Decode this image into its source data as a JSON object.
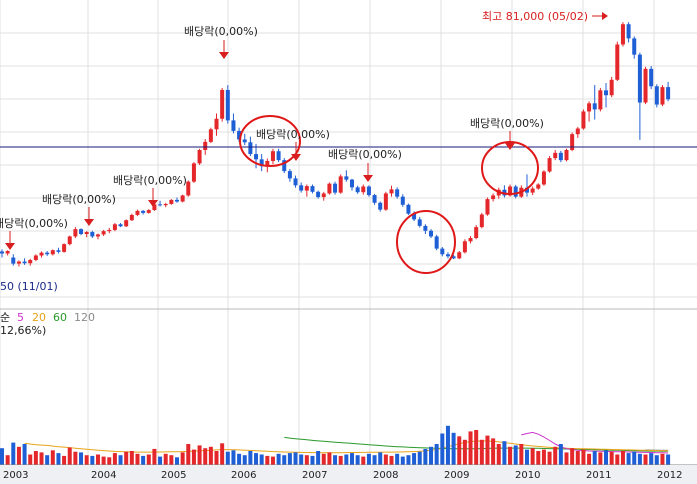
{
  "colors": {
    "up": "#e4272b",
    "down": "#1f5fd6",
    "arrow": "#d81e1e",
    "ref_line": "#1a1a7a",
    "circle": "#e01818",
    "grid": "#e0e0e0",
    "ma5": "#cc33cc",
    "ma20": "#e8a317",
    "ma60": "#2a9a2a",
    "ma120": "#9a9a9a"
  },
  "max_label": "최고 81,000 (05/02)",
  "min_label": "50 (11/01)",
  "dividend_annotations": [
    {
      "id": "2002",
      "text": "배당락(0,00%)"
    },
    {
      "id": "2003",
      "text": "배당락(0,00%)"
    },
    {
      "id": "2004",
      "text": "배당락(0,00%)"
    },
    {
      "id": "2005",
      "text": "배당락(0,00%)"
    },
    {
      "id": "2006",
      "text": "배당락(0,00%)"
    },
    {
      "id": "2007",
      "text": "배당락(0,00%)"
    },
    {
      "id": "2009",
      "text": "배당락(0,00%)"
    }
  ],
  "volume_legend": {
    "label": "순",
    "ma5": "5",
    "ma20": "20",
    "ma60": "60",
    "ma120": "120",
    "sub": "12,66%)"
  },
  "chart_data": {
    "type": "candlestick",
    "x_labels": [
      "2003",
      "2004",
      "2005",
      "2006",
      "2007",
      "2008",
      "2009",
      "2010",
      "2011",
      "2012"
    ],
    "price_range": [
      15000,
      84000
    ],
    "price_candles": [
      [
        24500,
        25000,
        23000,
        24000
      ],
      [
        24000,
        24800,
        23500,
        24600
      ],
      [
        23000,
        23800,
        21000,
        21500
      ],
      [
        21500,
        22300,
        20800,
        22000
      ],
      [
        22000,
        22800,
        21200,
        21600
      ],
      [
        21600,
        22700,
        21000,
        22400
      ],
      [
        22400,
        23800,
        22100,
        23500
      ],
      [
        23500,
        24500,
        23000,
        24200
      ],
      [
        24200,
        24600,
        23400,
        23800
      ],
      [
        23800,
        25000,
        23500,
        24800
      ],
      [
        24800,
        25400,
        24000,
        24400
      ],
      [
        24400,
        26500,
        24200,
        26300
      ],
      [
        26300,
        28400,
        26000,
        28200
      ],
      [
        28200,
        30500,
        27800,
        30000
      ],
      [
        30000,
        30200,
        28500,
        28800
      ],
      [
        28800,
        29500,
        28000,
        29300
      ],
      [
        29300,
        29600,
        27800,
        28200
      ],
      [
        28200,
        28900,
        27500,
        28700
      ],
      [
        28700,
        29800,
        28300,
        29500
      ],
      [
        29500,
        30300,
        29000,
        29800
      ],
      [
        29800,
        31500,
        29500,
        31200
      ],
      [
        31200,
        31500,
        30500,
        30700
      ],
      [
        30700,
        32400,
        30500,
        32200
      ],
      [
        32200,
        33800,
        32000,
        33500
      ],
      [
        33500,
        34800,
        33200,
        34500
      ],
      [
        34500,
        34700,
        33600,
        34000
      ],
      [
        34000,
        34900,
        33800,
        34700
      ],
      [
        34700,
        36300,
        34500,
        36100
      ],
      [
        36100,
        37000,
        35600,
        35900
      ],
      [
        35900,
        36500,
        35400,
        36200
      ],
      [
        36200,
        37400,
        36000,
        37200
      ],
      [
        37200,
        37800,
        36500,
        36800
      ],
      [
        36800,
        38500,
        36600,
        38300
      ],
      [
        38300,
        42000,
        38000,
        41700
      ],
      [
        41700,
        46500,
        41400,
        46200
      ],
      [
        46200,
        49800,
        45800,
        49500
      ],
      [
        49500,
        52200,
        48300,
        51500
      ],
      [
        51500,
        55000,
        51200,
        54600
      ],
      [
        54600,
        58500,
        53000,
        57200
      ],
      [
        57200,
        64800,
        56500,
        64300
      ],
      [
        64300,
        65500,
        56000,
        56800
      ],
      [
        56800,
        58500,
        53600,
        54200
      ],
      [
        54200,
        55000,
        51500,
        52100
      ],
      [
        52100,
        53500,
        50700,
        51400
      ],
      [
        51400,
        52800,
        48000,
        48500
      ],
      [
        48500,
        51000,
        45000,
        47200
      ],
      [
        47200,
        48500,
        44300,
        45500
      ],
      [
        45500,
        47400,
        44000,
        46800
      ],
      [
        46800,
        49800,
        46000,
        49200
      ],
      [
        49200,
        49800,
        46500,
        47000
      ],
      [
        47000,
        47500,
        43800,
        44300
      ],
      [
        44300,
        44800,
        41700,
        42500
      ],
      [
        42500,
        43200,
        40200,
        40800
      ],
      [
        40800,
        41500,
        39000,
        39500
      ],
      [
        39500,
        41000,
        38000,
        40600
      ],
      [
        40600,
        41000,
        38800,
        39200
      ],
      [
        39200,
        39500,
        37500,
        37900
      ],
      [
        37900,
        39200,
        37000,
        38800
      ],
      [
        38800,
        41500,
        38500,
        41200
      ],
      [
        41200,
        41700,
        38500,
        39000
      ],
      [
        39000,
        43500,
        38700,
        43000
      ],
      [
        43000,
        44500,
        41700,
        42200
      ],
      [
        42200,
        42400,
        39500,
        40300
      ],
      [
        40300,
        40700,
        38700,
        39100
      ],
      [
        39100,
        41000,
        38500,
        40500
      ],
      [
        40500,
        40800,
        38000,
        38400
      ],
      [
        38400,
        38700,
        36000,
        36500
      ],
      [
        36500,
        36800,
        34300,
        34800
      ],
      [
        34800,
        39200,
        34500,
        38800
      ],
      [
        38800,
        40700,
        38000,
        39800
      ],
      [
        39800,
        40300,
        37500,
        38000
      ],
      [
        38000,
        38600,
        35500,
        36000
      ],
      [
        36000,
        36300,
        33500,
        33800
      ],
      [
        33800,
        34400,
        32000,
        32400
      ],
      [
        32400,
        33000,
        30400,
        30800
      ],
      [
        30800,
        31200,
        28800,
        29600
      ],
      [
        29600,
        30000,
        27800,
        28200
      ],
      [
        28200,
        28600,
        24800,
        25200
      ],
      [
        25200,
        25600,
        23300,
        23800
      ],
      [
        23800,
        24300,
        22800,
        23300
      ],
      [
        23300,
        23700,
        22600,
        22800
      ],
      [
        22800,
        24600,
        22600,
        24300
      ],
      [
        24300,
        27500,
        24000,
        27000
      ],
      [
        27000,
        28300,
        26500,
        27800
      ],
      [
        27800,
        31000,
        27500,
        30500
      ],
      [
        30500,
        34000,
        30200,
        33600
      ],
      [
        33600,
        37800,
        33300,
        37400
      ],
      [
        37400,
        38800,
        36800,
        38300
      ],
      [
        38300,
        40200,
        37500,
        39700
      ],
      [
        39700,
        40800,
        37800,
        38300
      ],
      [
        38300,
        41000,
        38000,
        40500
      ],
      [
        40500,
        40900,
        37600,
        38000
      ],
      [
        38000,
        40800,
        37700,
        40200
      ],
      [
        40200,
        43500,
        38000,
        39000
      ],
      [
        39000,
        40500,
        38400,
        40000
      ],
      [
        40000,
        41300,
        39700,
        41000
      ],
      [
        41000,
        44500,
        40700,
        44200
      ],
      [
        44200,
        48000,
        43900,
        47500
      ],
      [
        47500,
        49500,
        47000,
        48800
      ],
      [
        48800,
        49300,
        46500,
        47000
      ],
      [
        47000,
        49800,
        46700,
        49500
      ],
      [
        49500,
        53800,
        49200,
        53400
      ],
      [
        53400,
        55200,
        52500,
        54800
      ],
      [
        54800,
        59500,
        54500,
        59000
      ],
      [
        59000,
        61500,
        56500,
        61000
      ],
      [
        61000,
        65500,
        57000,
        59500
      ],
      [
        59500,
        64800,
        59000,
        64200
      ],
      [
        64200,
        66000,
        60000,
        63000
      ],
      [
        63000,
        67500,
        62500,
        66800
      ],
      [
        66800,
        76200,
        66500,
        75500
      ],
      [
        75500,
        81000,
        75000,
        80500
      ],
      [
        80500,
        81000,
        76000,
        77000
      ],
      [
        77000,
        77500,
        72000,
        73000
      ],
      [
        73000,
        73500,
        52000,
        61200
      ],
      [
        61200,
        70000,
        60800,
        69500
      ],
      [
        69500,
        70200,
        64500,
        65200
      ],
      [
        65200,
        65700,
        60000,
        60700
      ],
      [
        60700,
        65500,
        60300,
        65000
      ],
      [
        65000,
        66300,
        61500,
        62000
      ]
    ],
    "volume_range": [
      0,
      1000
    ],
    "volumes": [
      240,
      140,
      320,
      260,
      300,
      150,
      200,
      180,
      140,
      210,
      170,
      130,
      250,
      190,
      180,
      140,
      130,
      150,
      120,
      110,
      170,
      140,
      190,
      200,
      160,
      130,
      150,
      230,
      120,
      160,
      140,
      110,
      180,
      300,
      220,
      280,
      240,
      260,
      200,
      310,
      190,
      210,
      160,
      140,
      200,
      170,
      150,
      130,
      120,
      160,
      140,
      170,
      180,
      150,
      140,
      130,
      200,
      160,
      180,
      140,
      130,
      150,
      170,
      140,
      120,
      160,
      140,
      180,
      150,
      130,
      160,
      120,
      140,
      170,
      190,
      230,
      260,
      300,
      450,
      560,
      460,
      410,
      360,
      480,
      500,
      360,
      420,
      380,
      300,
      340,
      260,
      280,
      300,
      220,
      240,
      200,
      220,
      190,
      260,
      300,
      180,
      240,
      200,
      220,
      160,
      200,
      180,
      210,
      190,
      150,
      200,
      170,
      190,
      160,
      150,
      170,
      140,
      160,
      150
    ],
    "ma20": [
      null,
      null,
      null,
      null,
      310,
      300,
      290,
      285,
      280,
      270,
      262,
      255,
      248,
      240,
      232,
      225,
      218,
      212,
      206,
      200,
      195,
      191,
      188,
      186,
      185,
      184,
      184,
      185,
      186,
      187,
      188,
      190,
      192,
      195,
      198,
      202,
      206,
      210,
      215,
      220,
      220,
      218,
      215,
      212,
      208,
      204,
      200,
      196,
      192,
      189,
      186,
      184,
      182,
      180,
      178,
      177,
      176,
      176,
      176,
      176,
      176,
      177,
      178,
      179,
      180,
      181,
      182,
      183,
      184,
      185,
      186,
      187,
      189,
      192,
      196,
      202,
      210,
      222,
      240,
      262,
      285,
      305,
      322,
      335,
      342,
      345,
      343,
      338,
      330,
      320,
      310,
      300,
      290,
      280,
      272,
      265,
      258,
      252,
      246,
      242,
      238,
      236,
      234,
      232,
      230,
      228,
      226,
      224,
      222,
      220,
      218,
      216,
      214,
      212,
      210,
      208,
      206,
      204,
      202
    ],
    "ma60": [
      null,
      null,
      null,
      null,
      null,
      null,
      null,
      null,
      null,
      null,
      null,
      null,
      null,
      null,
      null,
      null,
      null,
      null,
      null,
      null,
      null,
      null,
      null,
      null,
      null,
      null,
      null,
      null,
      null,
      null,
      null,
      null,
      null,
      null,
      null,
      null,
      null,
      null,
      null,
      null,
      null,
      null,
      null,
      null,
      null,
      null,
      null,
      null,
      null,
      null,
      395,
      385,
      376,
      368,
      360,
      352,
      345,
      338,
      332,
      326,
      320,
      314,
      308,
      302,
      296,
      290,
      284,
      278,
      272,
      266,
      262,
      258,
      254,
      250,
      247,
      244,
      241,
      238,
      236,
      234,
      232,
      231,
      231,
      232,
      233,
      235,
      237,
      239,
      241,
      242,
      242,
      242,
      242,
      241,
      240,
      238,
      236,
      234,
      232,
      230,
      228,
      226,
      224,
      222,
      220,
      218,
      216,
      214,
      212,
      210,
      208,
      206,
      204,
      202,
      200,
      199,
      198,
      197,
      196
    ],
    "ma120": [
      null,
      null,
      null,
      null,
      null,
      null,
      null,
      null,
      null,
      null,
      null,
      null,
      null,
      null,
      null,
      null,
      null,
      null,
      null,
      null,
      null,
      null,
      null,
      null,
      null,
      null,
      null,
      null,
      null,
      null,
      null,
      null,
      null,
      null,
      null,
      null,
      null,
      null,
      null,
      null,
      null,
      null,
      null,
      null,
      null,
      null,
      null,
      null,
      null,
      null,
      null,
      null,
      null,
      null,
      null,
      null,
      null,
      null,
      null,
      null,
      null,
      null,
      null,
      null,
      null,
      null,
      null,
      null,
      null,
      null,
      null,
      null,
      null,
      null,
      null,
      null,
      null,
      null,
      null,
      null,
      null,
      null,
      null,
      null,
      null,
      null,
      null,
      null,
      null,
      null,
      null,
      null,
      null,
      null,
      null,
      null,
      null,
      null,
      null,
      null,
      null,
      null,
      null,
      null,
      null,
      null,
      null,
      null,
      null,
      null,
      null,
      null,
      null,
      null,
      215,
      214,
      213,
      212,
      211
    ],
    "ma5": [
      null,
      null,
      null,
      null,
      null,
      null,
      null,
      null,
      null,
      null,
      null,
      null,
      null,
      null,
      null,
      null,
      null,
      null,
      null,
      null,
      null,
      null,
      null,
      null,
      null,
      null,
      null,
      null,
      null,
      null,
      null,
      null,
      null,
      null,
      null,
      null,
      null,
      null,
      null,
      null,
      null,
      null,
      null,
      null,
      null,
      null,
      null,
      null,
      null,
      null,
      null,
      null,
      null,
      null,
      null,
      null,
      null,
      null,
      null,
      null,
      null,
      null,
      null,
      null,
      null,
      null,
      null,
      null,
      null,
      null,
      null,
      null,
      null,
      null,
      null,
      null,
      null,
      null,
      null,
      null,
      null,
      null,
      null,
      null,
      null,
      null,
      null,
      null,
      null,
      null,
      null,
      null,
      430,
      450,
      465,
      440,
      400,
      350,
      300,
      260,
      235,
      220,
      210,
      205,
      200,
      198,
      196,
      194,
      192,
      190,
      188,
      186,
      184,
      182,
      180,
      178,
      176,
      174,
      172
    ]
  }
}
